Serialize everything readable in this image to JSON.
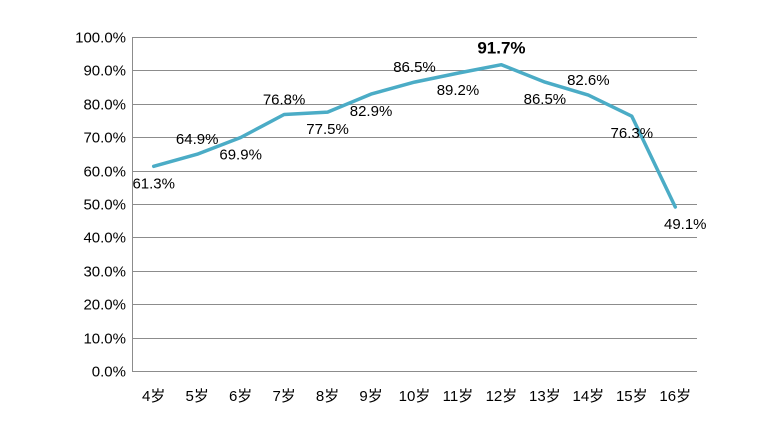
{
  "chart_data": {
    "type": "line",
    "categories": [
      "4岁",
      "5岁",
      "6岁",
      "7岁",
      "8岁",
      "9岁",
      "10岁",
      "11岁",
      "12岁",
      "13岁",
      "14岁",
      "15岁",
      "16岁"
    ],
    "series": [
      {
        "values": [
          61.3,
          64.9,
          69.9,
          76.8,
          77.5,
          82.9,
          86.5,
          89.2,
          91.7,
          86.5,
          82.6,
          76.3,
          49.1
        ],
        "labels": [
          "61.3%",
          "64.9%",
          "69.9%",
          "76.8%",
          "77.5%",
          "82.9%",
          "86.5%",
          "89.2%",
          "91.7%",
          "86.5%",
          "82.6%",
          "76.3%",
          "49.1%"
        ],
        "color": "#4BACC6",
        "highlight": "91.7%"
      }
    ],
    "title": "",
    "xlabel": "",
    "ylabel": "",
    "ylim": [
      0,
      100
    ],
    "y_ticks": [
      "0.0%",
      "10.0%",
      "20.0%",
      "30.0%",
      "40.0%",
      "50.0%",
      "60.0%",
      "70.0%",
      "80.0%",
      "90.0%",
      "100.0%"
    ],
    "grid": true,
    "legend": "none"
  },
  "colors": {
    "line": "#4BACC6",
    "grid": "#8C8C8C",
    "axis": "#8C8C8C"
  }
}
